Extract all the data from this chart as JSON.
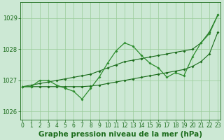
{
  "hours": [
    0,
    1,
    2,
    3,
    4,
    5,
    6,
    7,
    8,
    9,
    10,
    11,
    12,
    13,
    14,
    15,
    16,
    17,
    18,
    19,
    20,
    21,
    22,
    23
  ],
  "pressure_zigzag": [
    1026.8,
    1026.8,
    1027.0,
    1027.0,
    1026.85,
    1026.75,
    1026.65,
    1026.4,
    1026.75,
    1027.1,
    1027.55,
    1027.95,
    1028.2,
    1028.1,
    1027.8,
    1027.55,
    1027.4,
    1027.1,
    1027.25,
    1027.15,
    1027.75,
    1028.2,
    1028.5,
    1029.1
  ],
  "pressure_upper": [
    1026.8,
    1026.85,
    1026.9,
    1026.95,
    1027.0,
    1027.05,
    1027.1,
    1027.15,
    1027.2,
    1027.3,
    1027.4,
    1027.5,
    1027.6,
    1027.65,
    1027.7,
    1027.75,
    1027.8,
    1027.85,
    1027.9,
    1027.95,
    1028.0,
    1028.2,
    1028.55,
    1029.1
  ],
  "pressure_lower": [
    1026.8,
    1026.8,
    1026.8,
    1026.8,
    1026.8,
    1026.8,
    1026.8,
    1026.8,
    1026.82,
    1026.85,
    1026.9,
    1026.95,
    1027.0,
    1027.05,
    1027.1,
    1027.15,
    1027.2,
    1027.25,
    1027.3,
    1027.35,
    1027.45,
    1027.6,
    1027.85,
    1028.55
  ],
  "dark_green": "#1a6b1a",
  "mid_green": "#2d8c2d",
  "bg_color": "#cce8d4",
  "grid_color": "#99cc99",
  "title": "Graphe pression niveau de la mer (hPa)",
  "ylim_min": 1025.75,
  "ylim_max": 1029.5,
  "yticks": [
    1026,
    1027,
    1028,
    1029
  ],
  "ylabel_fontsize": 6,
  "xlabel_fontsize": 7.5,
  "tick_labelsize": 5.5
}
